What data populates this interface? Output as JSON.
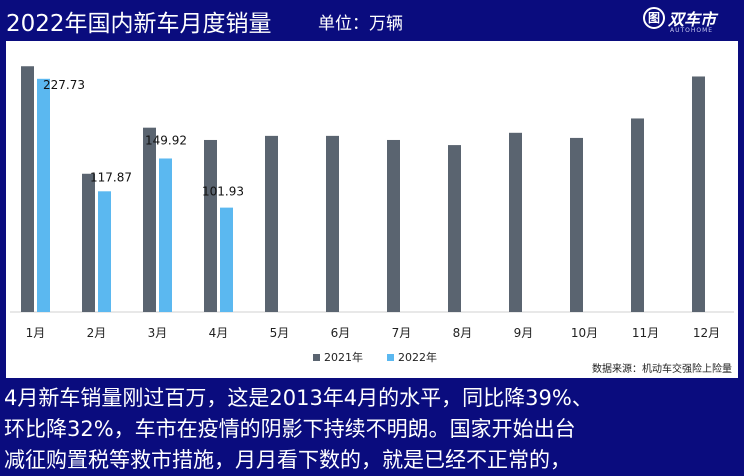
{
  "header": {
    "title": "2022年国内新车月度销量",
    "unit": "单位：万辆",
    "logo_text": "双车市",
    "logo_sub": "AUTOHOME"
  },
  "source": "数据来源：机动车交强险上险量",
  "caption": [
    "4月新车销量刚过百万，这是2013年4月的水平，同比降39%、",
    "环比降32%，车市在疫情的阴影下持续不明朗。国家开始出台",
    "减征购置税等救市措施，月月看下数的，就是已经不正常的，"
  ],
  "colors": {
    "background": "#0a0c7e",
    "series_2021": "#5a6470",
    "series_2022": "#5bb8f0"
  },
  "chart_data": {
    "type": "bar",
    "categories": [
      "1月",
      "2月",
      "3月",
      "4月",
      "5月",
      "6月",
      "7月",
      "8月",
      "9月",
      "10月",
      "11月",
      "12月"
    ],
    "series": [
      {
        "name": "2021年",
        "values": [
          240,
          135,
          180,
          168,
          172,
          172,
          168,
          163,
          175,
          170,
          189,
          230
        ],
        "labels": [
          "",
          "",
          "",
          "",
          "",
          "",
          "",
          "",
          "",
          "",
          "",
          ""
        ]
      },
      {
        "name": "2022年",
        "values": [
          227.73,
          117.87,
          149.92,
          101.93,
          null,
          null,
          null,
          null,
          null,
          null,
          null,
          null
        ],
        "labels": [
          "227.73",
          "117.87",
          "149.92",
          "101.93",
          "",
          "",
          "",
          "",
          "",
          "",
          "",
          ""
        ]
      }
    ],
    "ylim": [
      0,
      250
    ],
    "legend": "bottom",
    "grid": false
  }
}
